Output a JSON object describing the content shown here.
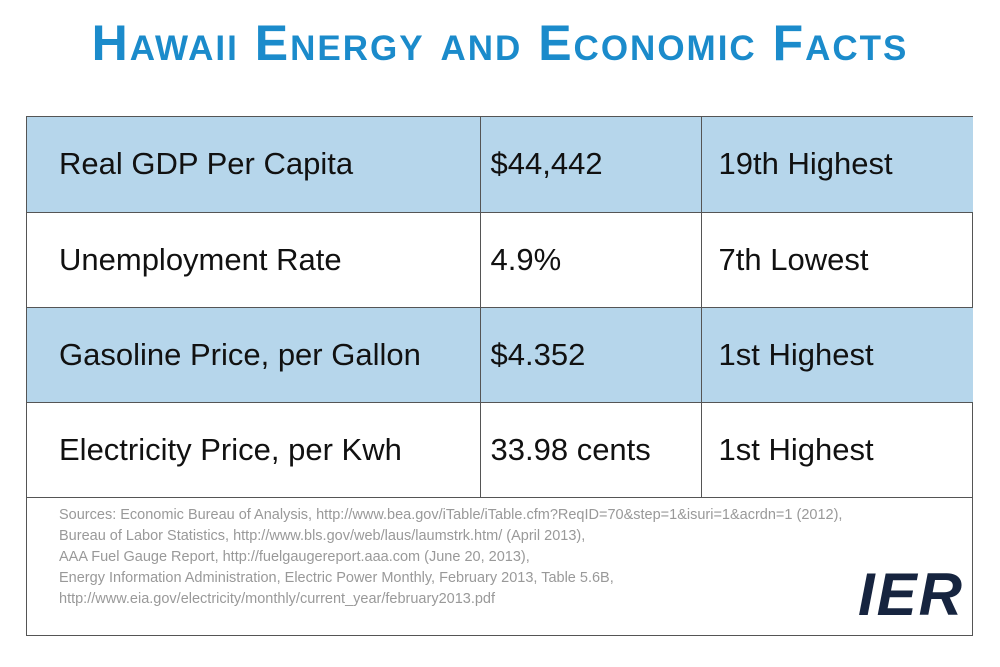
{
  "header": {
    "title": "Hawaii Energy and Economic Facts"
  },
  "table": {
    "rows": [
      [
        "Real GDP Per Capita",
        "$44,442",
        "19th Highest"
      ],
      [
        "Unemployment Rate",
        "4.9%",
        "7th Lowest"
      ],
      [
        "Gasoline Price, per Gallon",
        "$4.352",
        "1st Highest"
      ],
      [
        "Electricity Price, per Kwh",
        "33.98 cents",
        "1st Highest"
      ]
    ]
  },
  "sources": [
    "Sources: Economic Bureau of Analysis, http://www.bea.gov/iTable/iTable.cfm?ReqID=70&step=1&isuri=1&acrdn=1 (2012),",
    "Bureau of Labor Statistics, http://www.bls.gov/web/laus/laumstrk.htm/ (April 2013),",
    "AAA Fuel Gauge Report, http://fuelgaugereport.aaa.com  (June 20, 2013),",
    "Energy Information Administration, Electric Power Monthly, February 2013, Table 5.6B,",
    "http://www.eia.gov/electricity/monthly/current_year/february2013.pdf"
  ],
  "logo": "IER"
}
